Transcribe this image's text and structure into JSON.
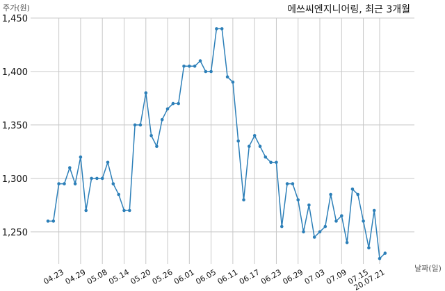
{
  "chart_data": {
    "type": "line",
    "title": "에쓰씨엔지니어링, 최근 3개월",
    "ylabel": "주가(원)",
    "xlabel": "날짜(일)",
    "ylim": [
      1220,
      1450
    ],
    "yticks": [
      1250,
      1300,
      1350,
      1400,
      1450
    ],
    "ytick_labels": [
      "1,250",
      "1,300",
      "1,350",
      "1,400",
      "1,450"
    ],
    "xtick_labels": [
      "04.23",
      "04.29",
      "05.08",
      "05.14",
      "05.20",
      "05.26",
      "06.01",
      "06.05",
      "06.11",
      "06.17",
      "06.23",
      "06.29",
      "07.03",
      "07.09",
      "07.15",
      "20.07.21"
    ],
    "xtick_index": [
      2,
      6,
      10,
      14,
      18,
      22,
      26,
      30,
      34,
      38,
      42,
      46,
      50,
      54,
      58,
      61
    ],
    "grid": true,
    "series": [
      {
        "values": [
          1260,
          1260,
          1295,
          1295,
          1310,
          1295,
          1320,
          1270,
          1300,
          1300,
          1300,
          1315,
          1295,
          1285,
          1270,
          1270,
          1350,
          1350,
          1380,
          1340,
          1330,
          1355,
          1365,
          1370,
          1370,
          1405,
          1405,
          1405,
          1410,
          1400,
          1400,
          1440,
          1440,
          1395,
          1390,
          1335,
          1280,
          1330,
          1340,
          1330,
          1320,
          1315,
          1315,
          1255,
          1295,
          1295,
          1280,
          1250,
          1275,
          1245,
          1250,
          1255,
          1285,
          1260,
          1265,
          1240,
          1290,
          1285,
          1260,
          1235,
          1270,
          1225,
          1230
        ]
      }
    ]
  }
}
